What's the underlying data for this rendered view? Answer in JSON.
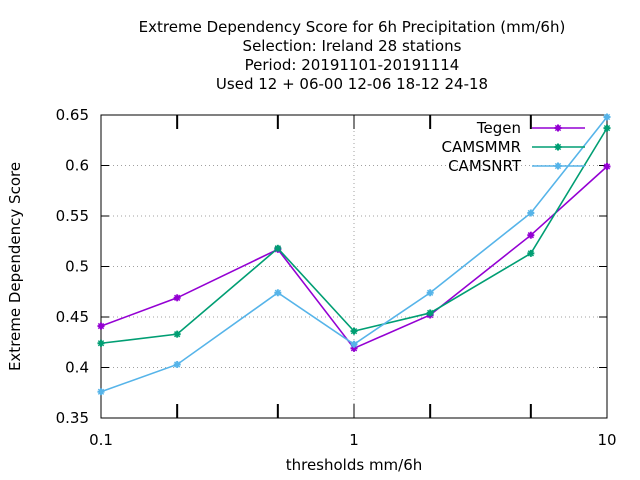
{
  "chart_data": {
    "type": "line",
    "title_lines": [
      "Extreme Dependency Score  for 6h Precipitation (mm/6h)",
      "Selection: Ireland      28 stations",
      "Period: 20191101-20191114",
      "Used  12 + 06-00 12-06 18-12 24-18"
    ],
    "xlabel": "thresholds mm/6h",
    "ylabel": "Extreme Dependency Score",
    "x_scale": "log",
    "xlim": [
      0.1,
      10
    ],
    "ylim": [
      0.35,
      0.65
    ],
    "x_ticks": [
      0.1,
      1,
      10
    ],
    "x_tick_labels": [
      "0.1",
      "1",
      "10"
    ],
    "x_minor_ticks": [
      0.2,
      0.5,
      2,
      5
    ],
    "y_ticks": [
      0.35,
      0.4,
      0.45,
      0.5,
      0.55,
      0.6,
      0.65
    ],
    "y_tick_labels": [
      "0.35",
      "0.4",
      "0.45",
      "0.5",
      "0.55",
      "0.6",
      "0.65"
    ],
    "grid": "dotted, major ticks only",
    "legend_position": "top-right",
    "x": [
      0.1,
      0.2,
      0.5,
      1,
      2,
      5,
      10
    ],
    "series": [
      {
        "name": "Tegen",
        "color": "#9400d3",
        "values": [
          0.441,
          0.469,
          0.517,
          0.419,
          0.452,
          0.531,
          0.599
        ]
      },
      {
        "name": "CAMSMMR",
        "color": "#009e73",
        "values": [
          0.424,
          0.433,
          0.518,
          0.436,
          0.454,
          0.513,
          0.637
        ]
      },
      {
        "name": "CAMSNRT",
        "color": "#56b4e9",
        "values": [
          0.376,
          0.403,
          0.474,
          0.423,
          0.474,
          0.553,
          0.648
        ]
      }
    ]
  }
}
